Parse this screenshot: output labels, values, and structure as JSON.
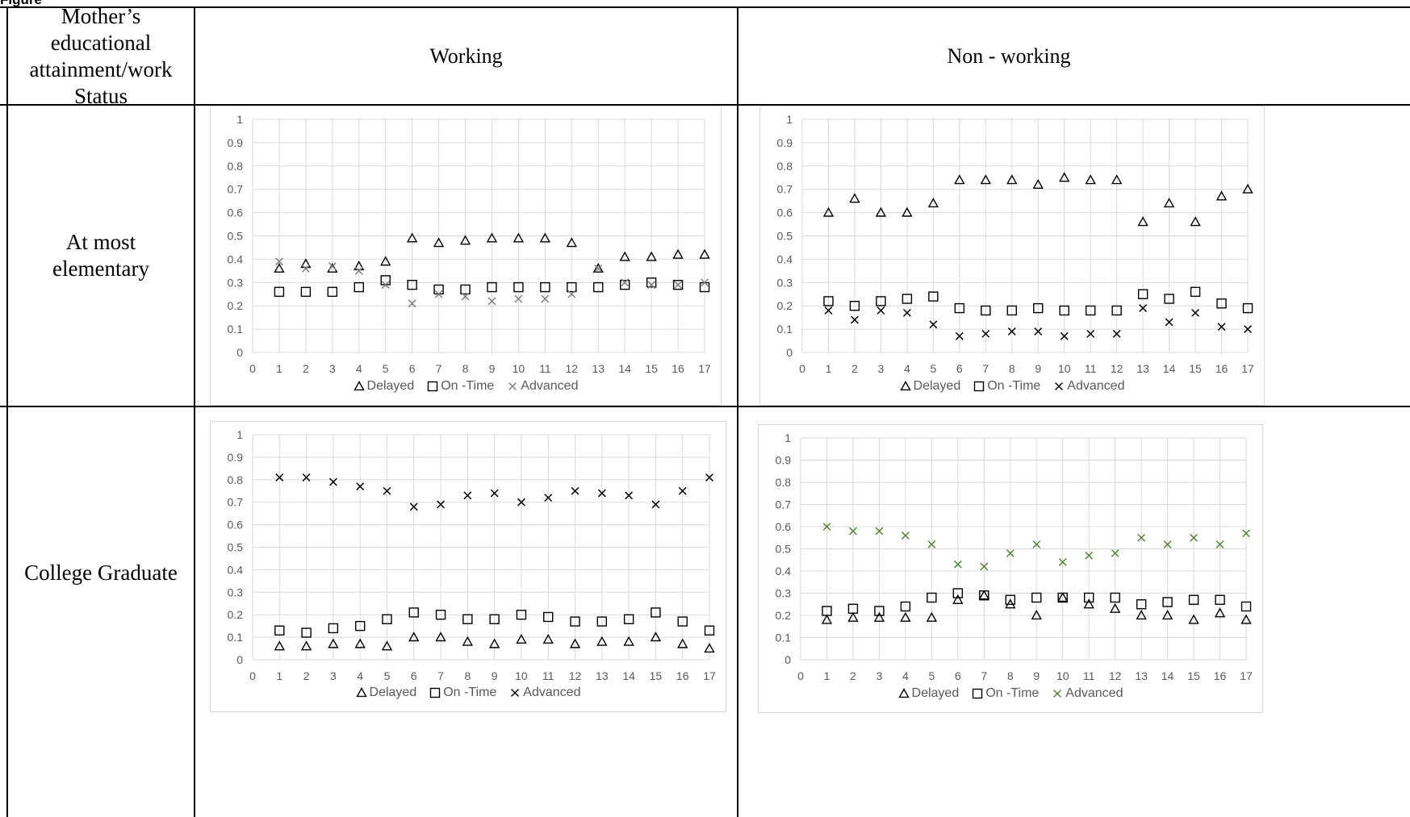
{
  "figure_title_fragment": "Figure",
  "table": {
    "header": {
      "first_col": "Mother’s educational attainment/work Status",
      "col_working": "Working",
      "col_nonworking": "Non - working"
    },
    "rows": [
      {
        "label": "At most\nelementary"
      },
      {
        "label": "College Graduate"
      }
    ]
  },
  "legend_labels": {
    "delayed": "Delayed",
    "ontime": "On -Time",
    "advanced": "Advanced"
  },
  "colors": {
    "delayed": "#000000",
    "ontime": "#000000",
    "advanced_gray": "#7f7f7f",
    "advanced_black": "#000000",
    "advanced_green": "#548235",
    "grid": "#d9d9d9",
    "tick_text": "#595959"
  },
  "chart_data": [
    {
      "type": "scatter",
      "panel": "At most elementary / Working",
      "xlim": [
        0,
        17
      ],
      "ylim": [
        0,
        1
      ],
      "xticks": [
        "0",
        "1",
        "2",
        "3",
        "4",
        "5",
        "6",
        "7",
        "8",
        "9",
        "10",
        "11",
        "12",
        "13",
        "14",
        "15",
        "16",
        "17"
      ],
      "yticks": [
        "0",
        "0.1",
        "0.2",
        "0.3",
        "0.4",
        "0.5",
        "0.6",
        "0.7",
        "0.8",
        "0.9",
        "1"
      ],
      "grid": true,
      "legend": "bottom",
      "x": [
        1,
        2,
        3,
        4,
        5,
        6,
        7,
        8,
        9,
        10,
        11,
        12,
        13,
        14,
        15,
        16,
        17
      ],
      "series": [
        {
          "name": "Delayed",
          "marker": "triangle",
          "color": "#000000",
          "values": [
            0.36,
            0.38,
            0.36,
            0.37,
            0.39,
            0.49,
            0.47,
            0.48,
            0.49,
            0.49,
            0.49,
            0.47,
            0.36,
            0.41,
            0.41,
            0.42,
            0.42
          ]
        },
        {
          "name": "On -Time",
          "marker": "square",
          "color": "#000000",
          "values": [
            0.26,
            0.26,
            0.26,
            0.28,
            0.31,
            0.29,
            0.27,
            0.27,
            0.28,
            0.28,
            0.28,
            0.28,
            0.28,
            0.29,
            0.3,
            0.29,
            0.28
          ]
        },
        {
          "name": "Advanced",
          "marker": "x",
          "color": "#7f7f7f",
          "values": [
            0.39,
            0.36,
            0.37,
            0.35,
            0.29,
            0.21,
            0.25,
            0.24,
            0.22,
            0.23,
            0.23,
            0.25,
            0.36,
            0.3,
            0.29,
            0.29,
            0.3
          ]
        }
      ]
    },
    {
      "type": "scatter",
      "panel": "At most elementary / Non - working",
      "xlim": [
        0,
        17
      ],
      "ylim": [
        0,
        1
      ],
      "xticks": [
        "0",
        "1",
        "2",
        "3",
        "4",
        "5",
        "6",
        "7",
        "8",
        "9",
        "10",
        "11",
        "12",
        "13",
        "14",
        "15",
        "16",
        "17"
      ],
      "yticks": [
        "0",
        "0.1",
        "0.2",
        "0.3",
        "0.4",
        "0.5",
        "0.6",
        "0.7",
        "0.8",
        "0.9",
        "1"
      ],
      "grid": true,
      "legend": "bottom",
      "x": [
        1,
        2,
        3,
        4,
        5,
        6,
        7,
        8,
        9,
        10,
        11,
        12,
        13,
        14,
        15,
        16,
        17
      ],
      "series": [
        {
          "name": "Delayed",
          "marker": "triangle",
          "color": "#000000",
          "values": [
            0.6,
            0.66,
            0.6,
            0.6,
            0.64,
            0.74,
            0.74,
            0.74,
            0.72,
            0.75,
            0.74,
            0.74,
            0.56,
            0.64,
            0.56,
            0.67,
            0.7
          ]
        },
        {
          "name": "On -Time",
          "marker": "square",
          "color": "#000000",
          "values": [
            0.22,
            0.2,
            0.22,
            0.23,
            0.24,
            0.19,
            0.18,
            0.18,
            0.19,
            0.18,
            0.18,
            0.18,
            0.25,
            0.23,
            0.26,
            0.21,
            0.19
          ]
        },
        {
          "name": "Advanced",
          "marker": "x",
          "color": "#000000",
          "values": [
            0.18,
            0.14,
            0.18,
            0.17,
            0.12,
            0.07,
            0.08,
            0.09,
            0.09,
            0.07,
            0.08,
            0.08,
            0.19,
            0.13,
            0.17,
            0.11,
            0.1
          ]
        }
      ]
    },
    {
      "type": "scatter",
      "panel": "College Graduate / Working",
      "xlim": [
        0,
        17
      ],
      "ylim": [
        0,
        1
      ],
      "xticks": [
        "0",
        "1",
        "2",
        "3",
        "4",
        "5",
        "6",
        "7",
        "8",
        "9",
        "10",
        "11",
        "12",
        "13",
        "14",
        "15",
        "16",
        "17"
      ],
      "yticks": [
        "0",
        "0.1",
        "0.2",
        "0.3",
        "0.4",
        "0.5",
        "0.6",
        "0.7",
        "0.8",
        "0.9",
        "1"
      ],
      "grid": true,
      "legend": "bottom",
      "x": [
        1,
        2,
        3,
        4,
        5,
        6,
        7,
        8,
        9,
        10,
        11,
        12,
        13,
        14,
        15,
        16,
        17
      ],
      "series": [
        {
          "name": "Delayed",
          "marker": "triangle",
          "color": "#000000",
          "values": [
            0.06,
            0.06,
            0.07,
            0.07,
            0.06,
            0.1,
            0.1,
            0.08,
            0.07,
            0.09,
            0.09,
            0.07,
            0.08,
            0.08,
            0.1,
            0.07,
            0.05
          ]
        },
        {
          "name": "On -Time",
          "marker": "square",
          "color": "#000000",
          "values": [
            0.13,
            0.12,
            0.14,
            0.15,
            0.18,
            0.21,
            0.2,
            0.18,
            0.18,
            0.2,
            0.19,
            0.17,
            0.17,
            0.18,
            0.21,
            0.17,
            0.13
          ]
        },
        {
          "name": "Advanced",
          "marker": "x",
          "color": "#000000",
          "values": [
            0.81,
            0.81,
            0.79,
            0.77,
            0.75,
            0.68,
            0.69,
            0.73,
            0.74,
            0.7,
            0.72,
            0.75,
            0.74,
            0.73,
            0.69,
            0.75,
            0.81
          ]
        }
      ]
    },
    {
      "type": "scatter",
      "panel": "College Graduate / Non - working",
      "xlim": [
        0,
        17
      ],
      "ylim": [
        0,
        1
      ],
      "xticks": [
        "0",
        "1",
        "2",
        "3",
        "4",
        "5",
        "6",
        "7",
        "8",
        "9",
        "10",
        "11",
        "12",
        "13",
        "14",
        "15",
        "16",
        "17"
      ],
      "yticks": [
        "0",
        "0.1",
        "0.2",
        "0.3",
        "0.4",
        "0.5",
        "0.6",
        "0.7",
        "0.8",
        "0.9",
        "1"
      ],
      "grid": true,
      "legend": "bottom",
      "x": [
        1,
        2,
        3,
        4,
        5,
        6,
        7,
        8,
        9,
        10,
        11,
        12,
        13,
        14,
        15,
        16,
        17
      ],
      "series": [
        {
          "name": "Delayed",
          "marker": "triangle",
          "color": "#000000",
          "values": [
            0.18,
            0.19,
            0.19,
            0.19,
            0.19,
            0.27,
            0.29,
            0.25,
            0.2,
            0.28,
            0.25,
            0.23,
            0.2,
            0.2,
            0.18,
            0.21,
            0.18
          ]
        },
        {
          "name": "On -Time",
          "marker": "square",
          "color": "#000000",
          "values": [
            0.22,
            0.23,
            0.22,
            0.24,
            0.28,
            0.3,
            0.29,
            0.27,
            0.28,
            0.28,
            0.28,
            0.28,
            0.25,
            0.26,
            0.27,
            0.27,
            0.24
          ]
        },
        {
          "name": "Advanced",
          "marker": "x",
          "color": "#548235",
          "values": [
            0.6,
            0.58,
            0.58,
            0.56,
            0.52,
            0.43,
            0.42,
            0.48,
            0.52,
            0.44,
            0.47,
            0.48,
            0.55,
            0.52,
            0.55,
            0.52,
            0.57
          ]
        }
      ]
    }
  ]
}
